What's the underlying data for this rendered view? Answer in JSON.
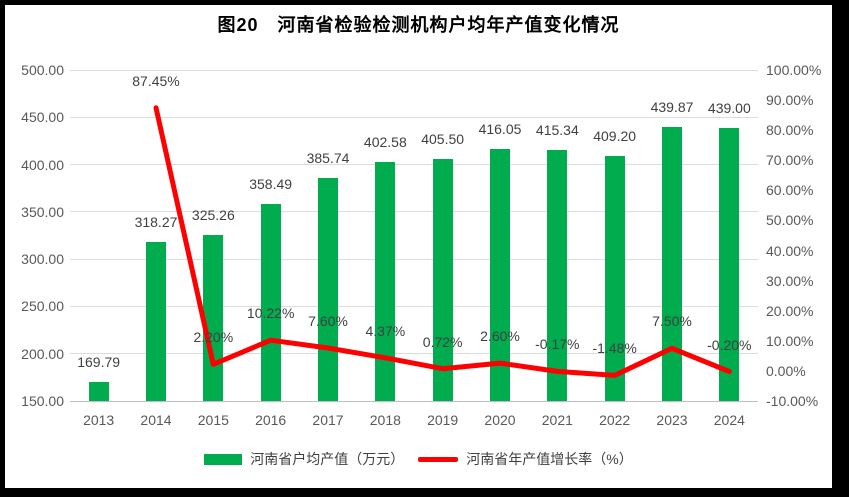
{
  "title": "图20　河南省检验检测机构户均年产值变化情况",
  "colors": {
    "bar": "#00AC4E",
    "line": "#FF0000",
    "grid": "#DCDCDC",
    "axis_line": "#BFBFBF",
    "tick_text": "#595959",
    "data_label_text": "#404040",
    "title_text": "#000000",
    "frame_border": "#000000",
    "background": "#FFFFFF"
  },
  "chart_data": {
    "type": "combo_bar_line",
    "title": "图20　河南省检验检测机构户均年产值变化情况",
    "categories": [
      "2013",
      "2014",
      "2015",
      "2016",
      "2017",
      "2018",
      "2019",
      "2020",
      "2021",
      "2022",
      "2023",
      "2024"
    ],
    "series": [
      {
        "name": "河南省户均产值（万元）",
        "type": "bar",
        "axis": "left",
        "color": "#00AC4E",
        "values": [
          169.79,
          318.27,
          325.26,
          358.49,
          385.74,
          402.58,
          405.5,
          416.05,
          415.34,
          409.2,
          439.87,
          439.0
        ],
        "data_labels": [
          "169.79",
          "318.27",
          "325.26",
          "358.49",
          "385.74",
          "402.58",
          "405.50",
          "416.05",
          "415.34",
          "409.20",
          "439.87",
          "439.00"
        ]
      },
      {
        "name": "河南省年产值增长率（%）",
        "type": "line",
        "axis": "right",
        "color": "#FF0000",
        "values": [
          null,
          87.45,
          2.2,
          10.22,
          7.6,
          4.37,
          0.72,
          2.6,
          -0.17,
          -1.48,
          7.5,
          -0.2
        ],
        "data_labels": [
          null,
          "87.45%",
          "2.20%",
          "10.22%",
          "7.60%",
          "4.37%",
          "0.72%",
          "2.60%",
          "-0.17%",
          "-1.48%",
          "7.50%",
          "-0.20%"
        ]
      }
    ],
    "left_axis": {
      "min": 150,
      "max": 500,
      "step": 50,
      "tick_values": [
        500,
        450,
        400,
        350,
        300,
        250,
        200,
        150
      ],
      "ticks": [
        "500.00",
        "450.00",
        "400.00",
        "350.00",
        "300.00",
        "250.00",
        "200.00",
        "150.00"
      ]
    },
    "right_axis": {
      "min": -10,
      "max": 100,
      "step": 10,
      "tick_values": [
        100,
        90,
        80,
        70,
        60,
        50,
        40,
        30,
        20,
        10,
        0,
        -10
      ],
      "ticks": [
        "100.00%",
        "90.00%",
        "80.00%",
        "70.00%",
        "60.00%",
        "50.00%",
        "40.00%",
        "30.00%",
        "20.00%",
        "10.00%",
        "0.00%",
        "-10.00%"
      ]
    },
    "grid": true,
    "legend_position": "bottom"
  }
}
